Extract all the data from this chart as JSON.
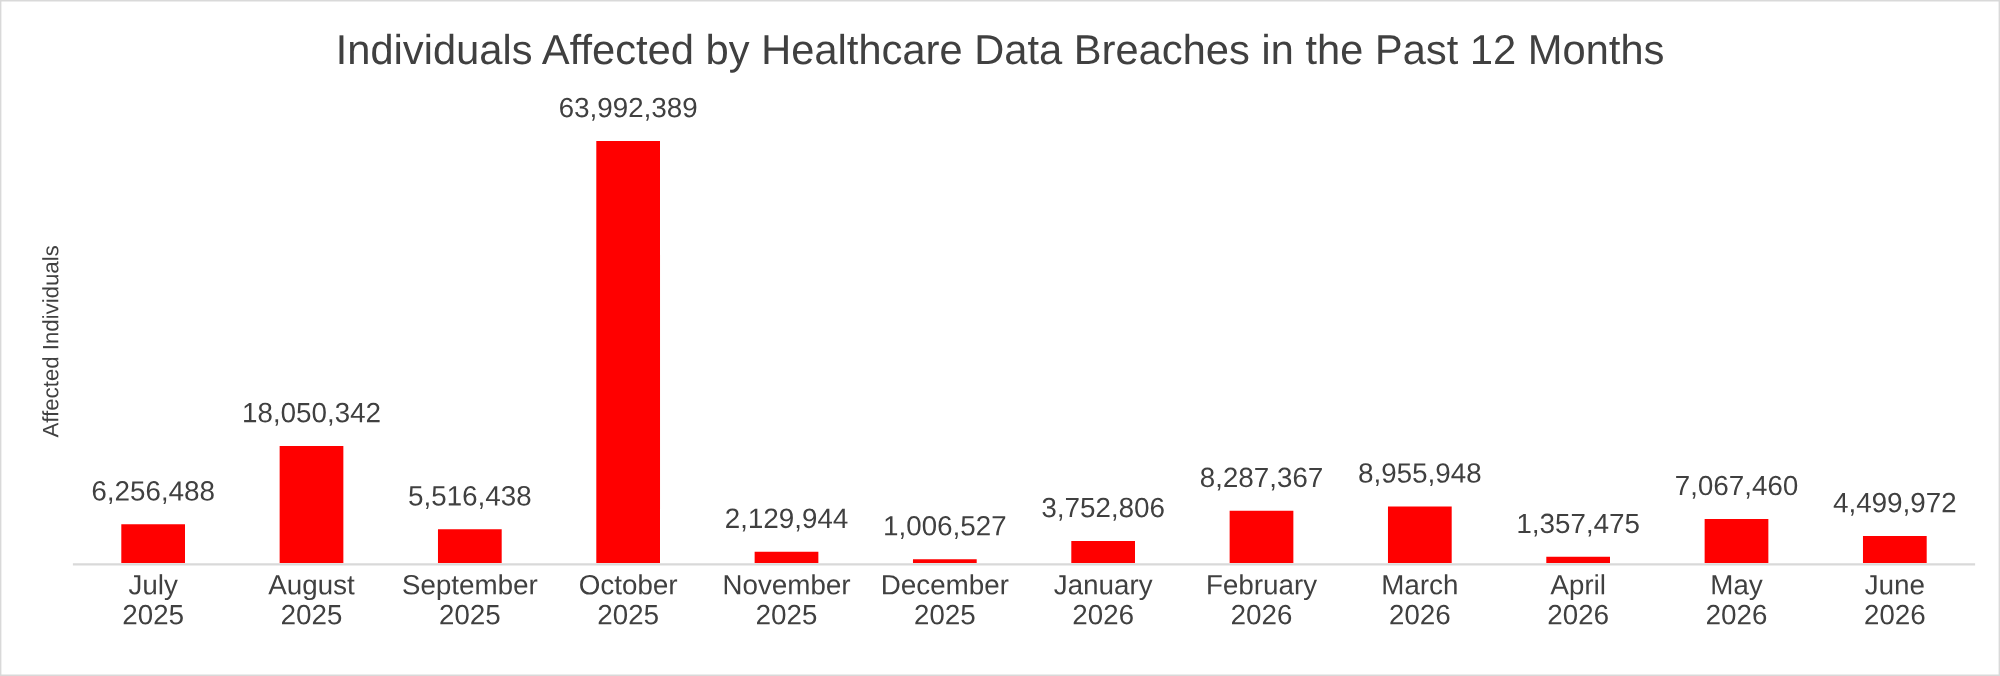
{
  "chart_data": {
    "type": "bar",
    "title": "Individuals Affected by Healthcare Data Breaches in the Past 12 Months",
    "ylabel": "Affected Individuals",
    "categories": [
      "July\n2025",
      "August\n2025",
      "September\n2025",
      "October\n2025",
      "November\n2025",
      "December\n2025",
      "January\n2026",
      "February\n2026",
      "March\n2026",
      "April\n2026",
      "May\n2026",
      "June\n2026"
    ],
    "values": [
      6256488,
      18050342,
      5516438,
      63992389,
      2129944,
      1006527,
      3752806,
      8287367,
      8955948,
      1357475,
      7067460,
      4499972
    ],
    "value_labels": [
      "6,256,488",
      "18,050,342",
      "5,516,438",
      "63,992,389",
      "2,129,944",
      "1,006,527",
      "3,752,806",
      "8,287,367",
      "8,955,948",
      "1,357,475",
      "7,067,460",
      "4,499,972"
    ],
    "color": "#ff0000",
    "grid": false,
    "tick_labels": "x"
  }
}
